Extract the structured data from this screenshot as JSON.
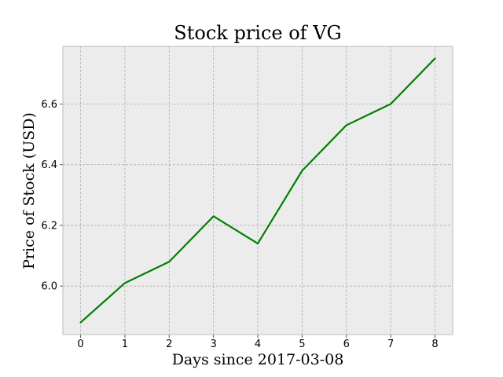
{
  "chart_data": {
    "type": "line",
    "title": "Stock price of VG",
    "xlabel": "Days since 2017-03-08",
    "ylabel": "Price of Stock (USD)",
    "x": [
      0,
      1,
      2,
      3,
      4,
      5,
      6,
      7,
      8
    ],
    "xlim": [
      -0.4,
      8.4
    ],
    "ylim": [
      5.84,
      6.79
    ],
    "xticks": [
      0,
      1,
      2,
      3,
      4,
      5,
      6,
      7,
      8
    ],
    "yticks": [
      6.0,
      6.2,
      6.4,
      6.6
    ],
    "ytick_labels": [
      "6.0",
      "6.2",
      "6.4",
      "6.6"
    ],
    "grid": true,
    "series": [
      {
        "values": [
          5.88,
          6.01,
          6.08,
          6.23,
          6.14,
          6.38,
          6.53,
          6.6,
          6.75
        ],
        "color": "#008000"
      }
    ]
  },
  "colors": {
    "plot_background": "#ececec",
    "grid": "#b0b0b0",
    "frame": "#bcbcbc",
    "line": "#008000"
  }
}
